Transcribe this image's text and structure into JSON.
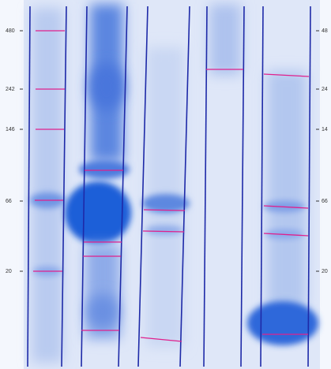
{
  "markers_left": [
    "480",
    "242",
    "146",
    "66",
    "20"
  ],
  "markers_right": [
    "48",
    "24",
    "14",
    "66",
    "20"
  ]
}
